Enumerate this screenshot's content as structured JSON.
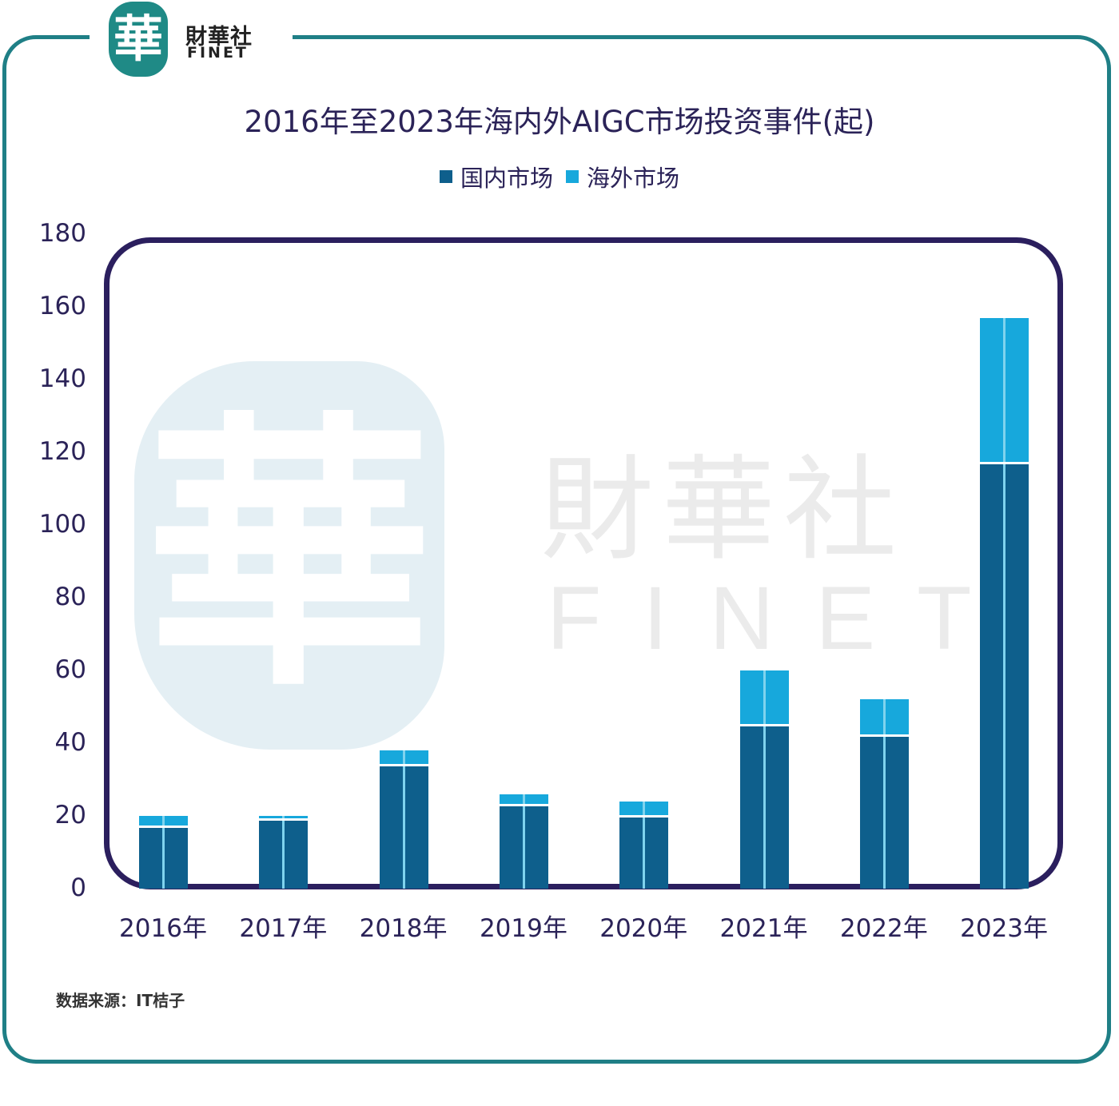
{
  "brand": {
    "seal_char": "華",
    "name_cn": "財華社",
    "name_en": "FINET",
    "frame_color": "#1f7f86",
    "seal_color": "#1f8a86"
  },
  "watermark": {
    "seal_char": "華",
    "name_cn": "財華社",
    "name_en": "FINET"
  },
  "legend": {
    "items": [
      {
        "label": "国内市场",
        "color": "#0e5f8c"
      },
      {
        "label": "海外市场",
        "color": "#17a8dc"
      }
    ]
  },
  "source": "数据来源：IT桔子",
  "chart_data": {
    "type": "bar",
    "stacked": true,
    "title": "2016年至2023年海内外AIGC市场投资事件(起)",
    "xlabel": "",
    "ylabel": "",
    "ylim": [
      0,
      180
    ],
    "yticks": [
      "0",
      "20",
      "40",
      "60",
      "80",
      "100",
      "120",
      "140",
      "160",
      "180"
    ],
    "categories": [
      "2016年",
      "2017年",
      "2018年",
      "2019年",
      "2020年",
      "2021年",
      "2022年",
      "2023年"
    ],
    "series": [
      {
        "name": "国内市场",
        "color": "#0e5f8c",
        "values": [
          17,
          19,
          34,
          23,
          20,
          45,
          42,
          117
        ]
      },
      {
        "name": "海外市场",
        "color": "#17a8dc",
        "values": [
          3,
          1,
          4,
          3,
          4,
          15,
          10,
          40
        ]
      }
    ],
    "totals": [
      20,
      20,
      38,
      26,
      24,
      60,
      52,
      157
    ],
    "legend_position": "top",
    "grid": false
  }
}
